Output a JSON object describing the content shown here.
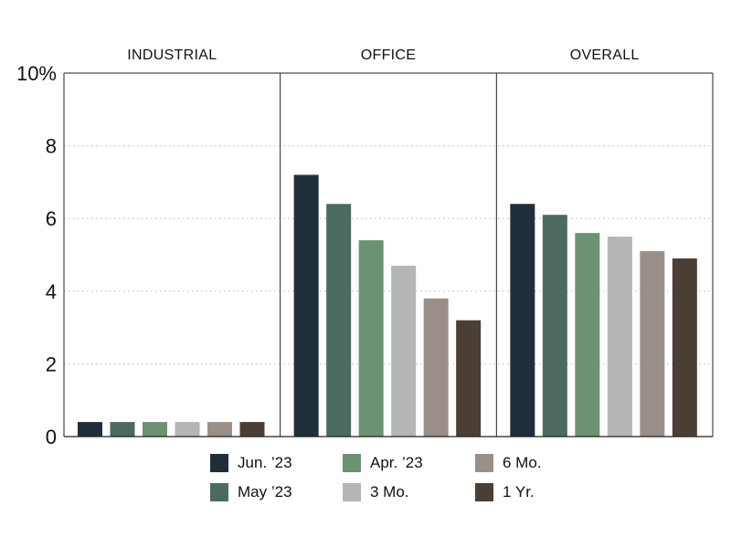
{
  "chart_data": {
    "type": "bar",
    "ylim": [
      0,
      10
    ],
    "yticks": [
      "0",
      "2",
      "4",
      "6",
      "8",
      "10%"
    ],
    "grid": true,
    "legend_position": "bottom",
    "panels": [
      {
        "title": "INDUSTRIAL",
        "values": [
          0.4,
          0.4,
          0.4,
          0.4,
          0.4,
          0.4
        ]
      },
      {
        "title": "OFFICE",
        "values": [
          7.2,
          6.4,
          5.4,
          4.7,
          3.8,
          3.2
        ]
      },
      {
        "title": "OVERALL",
        "values": [
          6.4,
          6.1,
          5.6,
          5.5,
          5.1,
          4.9
        ]
      }
    ],
    "series": [
      {
        "name": "Jun. ’23",
        "color": "#1f2f3a"
      },
      {
        "name": "May ’23",
        "color": "#4c6a62"
      },
      {
        "name": "Apr. ’23",
        "color": "#6b9273"
      },
      {
        "name": "3 Mo.",
        "color": "#b4b6b3"
      },
      {
        "name": "6 Mo.",
        "color": "#9a8f88"
      },
      {
        "name": "1 Yr.",
        "color": "#4b3f35"
      }
    ]
  }
}
